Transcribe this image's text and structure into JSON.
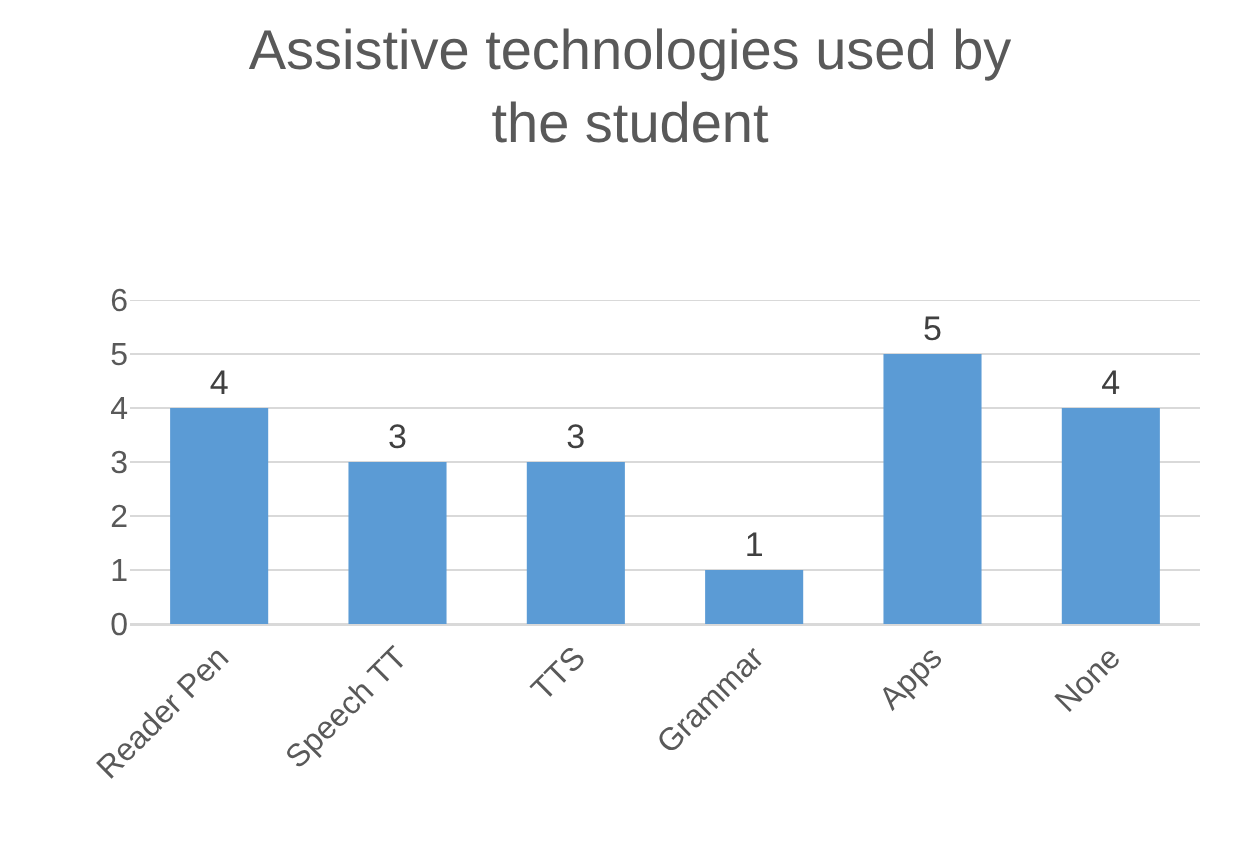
{
  "chart_data": {
    "type": "bar",
    "title": "Assistive technologies used by the student",
    "categories": [
      "Reader Pen",
      "Speech TT",
      "TTS",
      "Grammar",
      "Apps",
      "None"
    ],
    "values": [
      4,
      3,
      3,
      1,
      5,
      4
    ],
    "color": "#5b9bd5",
    "ylim": [
      0,
      6
    ],
    "yticks": [
      0,
      1,
      2,
      3,
      4,
      5,
      6
    ],
    "grid": "y",
    "data_labels": true,
    "legend": false
  }
}
